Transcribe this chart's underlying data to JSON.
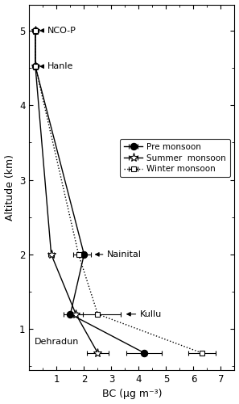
{
  "stations": [
    "NCO-P",
    "Hanle",
    "Nainital",
    "Kullu",
    "Dehradun"
  ],
  "altitudes": [
    5.0,
    4.52,
    2.0,
    1.2,
    0.68
  ],
  "pre_monsoon": {
    "bc": [
      0.22,
      0.22,
      2.0,
      1.5,
      4.2
    ],
    "xerr": [
      0.03,
      0.03,
      0.25,
      0.25,
      0.65
    ],
    "marker": "o",
    "linestyle": "-",
    "color": "black",
    "mfc": "black",
    "label": "Pre monsoon",
    "markersize": 6
  },
  "summer_monsoon": {
    "bc": [
      0.22,
      0.22,
      0.8,
      1.7,
      2.5
    ],
    "xerr": [
      0.03,
      0.03,
      0.1,
      0.25,
      0.4
    ],
    "marker": "*",
    "linestyle": "-",
    "color": "black",
    "mfc": "white",
    "label": "Summer  monsoon",
    "markersize": 8
  },
  "winter_monsoon": {
    "bc": [
      0.22,
      0.22,
      1.8,
      2.5,
      6.3
    ],
    "xerr": [
      0.03,
      0.03,
      0.2,
      0.85,
      0.5
    ],
    "marker": "s",
    "linestyle": ":",
    "color": "black",
    "mfc": "white",
    "label": "Winter monsoon",
    "markersize": 5
  },
  "xlabel": "BC (μg m⁻³)",
  "ylabel": "Altitude (km)",
  "xlim": [
    0,
    7.5
  ],
  "ylim": [
    0.45,
    5.35
  ],
  "yticks": [
    1,
    2,
    3,
    4,
    5
  ],
  "xticks": [
    1,
    2,
    3,
    4,
    5,
    6,
    7
  ],
  "figsize": [
    2.97,
    5.0
  ],
  "dpi": 100
}
